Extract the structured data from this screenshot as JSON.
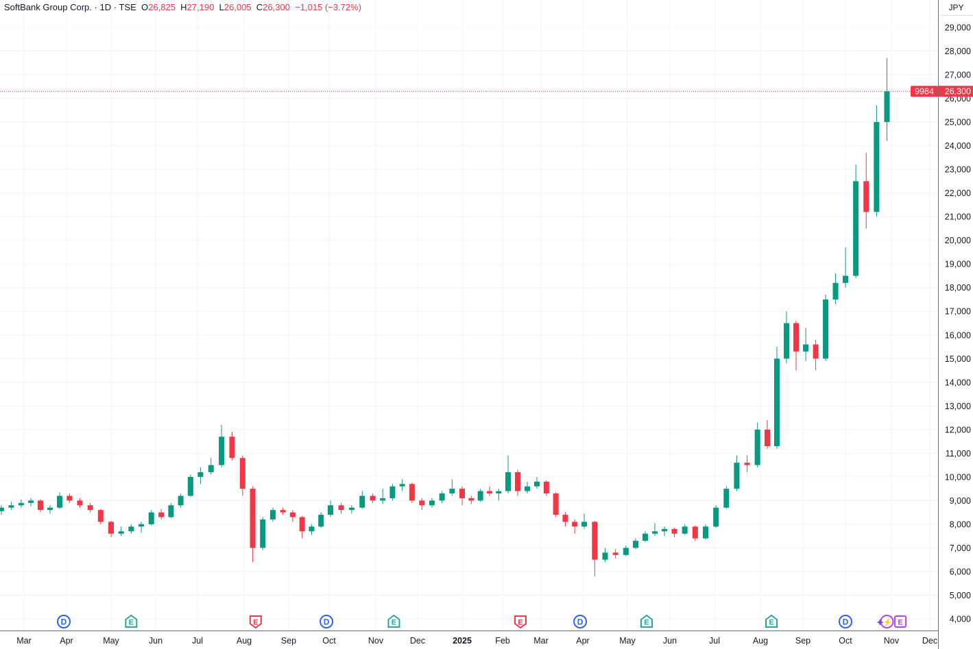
{
  "header": {
    "symbol": "SoftBank Group Corp.",
    "sep1": "·",
    "interval": "1D",
    "sep2": "·",
    "exchange": "TSE",
    "open_label": "O",
    "open": "26,825",
    "high_label": "H",
    "high": "27,190",
    "low_label": "L",
    "low": "26,005",
    "close_label": "C",
    "close": "26,300",
    "change": "−1,015 (−3.72%)"
  },
  "price_scale": {
    "currency": "JPY"
  },
  "last_price": {
    "ticker": "9984",
    "value": "26,300",
    "color": "#f23645"
  },
  "colors": {
    "up": "#089981",
    "down": "#f23645",
    "grid": "#f0f3fa",
    "dividend": "#2962ff",
    "earnings_past": "#22ab94",
    "earnings_neg": "#f23645",
    "upcoming": "#b245e6"
  },
  "chart_data": {
    "type": "candlestick",
    "title": "",
    "ylim": [
      3500,
      29800
    ],
    "grid": true,
    "y_ticks": [
      "4,000",
      "5,000",
      "6,000",
      "7,000",
      "8,000",
      "9,000",
      "10,000",
      "11,000",
      "12,000",
      "13,000",
      "14,000",
      "15,000",
      "16,000",
      "17,000",
      "18,000",
      "19,000",
      "20,000",
      "21,000",
      "22,000",
      "23,000",
      "24,000",
      "25,000",
      "26,000",
      "27,000",
      "28,000",
      "29,000"
    ],
    "x_ticks": [
      {
        "month": "2024-03",
        "label": "Mar"
      },
      {
        "month": "2024-04",
        "label": "Apr"
      },
      {
        "month": "2024-05",
        "label": "May"
      },
      {
        "month": "2024-06",
        "label": "Jun"
      },
      {
        "month": "2024-07",
        "label": "Jul"
      },
      {
        "month": "2024-08",
        "label": "Aug"
      },
      {
        "month": "2024-09",
        "label": "Sep"
      },
      {
        "month": "2024-10",
        "label": "Oct"
      },
      {
        "month": "2024-11",
        "label": "Nov"
      },
      {
        "month": "2024-12",
        "label": "Dec"
      },
      {
        "month": "2025-01",
        "label": "2025",
        "year": true
      },
      {
        "month": "2025-02",
        "label": "Feb"
      },
      {
        "month": "2025-03",
        "label": "Mar"
      },
      {
        "month": "2025-04",
        "label": "Apr"
      },
      {
        "month": "2025-05",
        "label": "May"
      },
      {
        "month": "2025-06",
        "label": "Jun"
      },
      {
        "month": "2025-07",
        "label": "Jul"
      },
      {
        "month": "2025-08",
        "label": "Aug"
      },
      {
        "month": "2025-09",
        "label": "Sep"
      },
      {
        "month": "2025-10",
        "label": "Oct"
      },
      {
        "month": "2025-11",
        "label": "Nov"
      },
      {
        "month": "2025-12",
        "label": "Dec"
      }
    ],
    "candle_fields": [
      "date",
      "open",
      "high",
      "low",
      "close"
    ],
    "candles": [
      [
        "2024-02-12",
        8550,
        8800,
        8400,
        8700
      ],
      [
        "2024-02-19",
        8700,
        8950,
        8600,
        8800
      ],
      [
        "2024-02-26",
        8800,
        9050,
        8700,
        8900
      ],
      [
        "2024-03-04",
        8900,
        9100,
        8750,
        9000
      ],
      [
        "2024-03-11",
        9000,
        9050,
        8500,
        8600
      ],
      [
        "2024-03-18",
        8600,
        8800,
        8450,
        8700
      ],
      [
        "2024-03-25",
        8700,
        9350,
        8650,
        9200
      ],
      [
        "2024-04-01",
        9200,
        9300,
        8900,
        9000
      ],
      [
        "2024-04-08",
        9000,
        9100,
        8700,
        8800
      ],
      [
        "2024-04-15",
        8800,
        8900,
        8500,
        8600
      ],
      [
        "2024-04-22",
        8600,
        8650,
        8000,
        8100
      ],
      [
        "2024-04-29",
        8100,
        8150,
        7450,
        7600
      ],
      [
        "2024-05-06",
        7600,
        7900,
        7500,
        7700
      ],
      [
        "2024-05-13",
        7700,
        8000,
        7600,
        7900
      ],
      [
        "2024-05-20",
        7900,
        8100,
        7650,
        8000
      ],
      [
        "2024-05-27",
        8000,
        8600,
        7950,
        8500
      ],
      [
        "2024-06-03",
        8500,
        8650,
        8200,
        8300
      ],
      [
        "2024-06-10",
        8300,
        8900,
        8250,
        8800
      ],
      [
        "2024-06-17",
        8800,
        9300,
        8700,
        9200
      ],
      [
        "2024-06-24",
        9200,
        10100,
        9150,
        10000
      ],
      [
        "2024-07-01",
        10000,
        10400,
        9700,
        10200
      ],
      [
        "2024-07-08",
        10200,
        10800,
        10100,
        10500
      ],
      [
        "2024-07-15",
        10500,
        12200,
        10400,
        11700
      ],
      [
        "2024-07-22",
        11700,
        11900,
        10700,
        10800
      ],
      [
        "2024-07-29",
        10800,
        10900,
        9200,
        9500
      ],
      [
        "2024-08-05",
        9500,
        9600,
        6400,
        7000
      ],
      [
        "2024-08-12",
        7000,
        8300,
        6900,
        8200
      ],
      [
        "2024-08-19",
        8200,
        8700,
        8100,
        8600
      ],
      [
        "2024-08-26",
        8600,
        8700,
        8400,
        8500
      ],
      [
        "2024-09-02",
        8500,
        8600,
        8100,
        8300
      ],
      [
        "2024-09-09",
        8300,
        8350,
        7400,
        7700
      ],
      [
        "2024-09-16",
        7700,
        8000,
        7550,
        7900
      ],
      [
        "2024-09-23",
        7900,
        8500,
        7850,
        8400
      ],
      [
        "2024-09-30",
        8400,
        9000,
        8300,
        8800
      ],
      [
        "2024-10-07",
        8800,
        8900,
        8450,
        8600
      ],
      [
        "2024-10-14",
        8600,
        8800,
        8450,
        8700
      ],
      [
        "2024-10-21",
        8700,
        9400,
        8650,
        9200
      ],
      [
        "2024-10-28",
        9200,
        9300,
        8900,
        9000
      ],
      [
        "2024-11-04",
        9000,
        9500,
        8850,
        9100
      ],
      [
        "2024-11-11",
        9100,
        9700,
        9000,
        9600
      ],
      [
        "2024-11-18",
        9600,
        9900,
        9400,
        9700
      ],
      [
        "2024-11-25",
        9700,
        9750,
        8900,
        9000
      ],
      [
        "2024-12-02",
        9000,
        9100,
        8600,
        8800
      ],
      [
        "2024-12-09",
        8800,
        9100,
        8700,
        9000
      ],
      [
        "2024-12-16",
        9000,
        9400,
        8900,
        9300
      ],
      [
        "2024-12-23",
        9300,
        9900,
        9200,
        9500
      ],
      [
        "2024-12-30",
        9500,
        9600,
        8800,
        9100
      ],
      [
        "2025-01-06",
        9100,
        9200,
        8850,
        9000
      ],
      [
        "2025-01-13",
        9000,
        9500,
        8950,
        9400
      ],
      [
        "2025-01-20",
        9400,
        9600,
        9200,
        9300
      ],
      [
        "2025-01-27",
        9300,
        9500,
        9000,
        9400
      ],
      [
        "2025-02-03",
        9400,
        10900,
        9300,
        10200
      ],
      [
        "2025-02-10",
        10200,
        10300,
        9200,
        9400
      ],
      [
        "2025-02-17",
        9400,
        9800,
        9300,
        9600
      ],
      [
        "2025-02-24",
        9600,
        10000,
        9500,
        9800
      ],
      [
        "2025-03-03",
        9800,
        9850,
        9200,
        9300
      ],
      [
        "2025-03-10",
        9300,
        9350,
        8300,
        8400
      ],
      [
        "2025-03-17",
        8400,
        8500,
        7900,
        8100
      ],
      [
        "2025-03-24",
        8100,
        8200,
        7600,
        7900
      ],
      [
        "2025-03-31",
        7900,
        8450,
        7800,
        8100
      ],
      [
        "2025-04-07",
        8100,
        8150,
        5800,
        6500
      ],
      [
        "2025-04-14",
        6500,
        7000,
        6400,
        6800
      ],
      [
        "2025-04-21",
        6800,
        6950,
        6550,
        6700
      ],
      [
        "2025-04-28",
        6700,
        7100,
        6650,
        7000
      ],
      [
        "2025-05-05",
        7000,
        7400,
        6950,
        7300
      ],
      [
        "2025-05-12",
        7300,
        7700,
        7250,
        7600
      ],
      [
        "2025-05-19",
        7600,
        8050,
        7500,
        7700
      ],
      [
        "2025-05-26",
        7700,
        7900,
        7500,
        7800
      ],
      [
        "2025-06-02",
        7800,
        7850,
        7450,
        7600
      ],
      [
        "2025-06-09",
        7600,
        8000,
        7550,
        7900
      ],
      [
        "2025-06-16",
        7900,
        7950,
        7300,
        7400
      ],
      [
        "2025-06-23",
        7400,
        8000,
        7350,
        7900
      ],
      [
        "2025-06-30",
        7900,
        8800,
        7850,
        8700
      ],
      [
        "2025-07-07",
        8700,
        9600,
        8650,
        9500
      ],
      [
        "2025-07-14",
        9500,
        10900,
        9400,
        10600
      ],
      [
        "2025-07-21",
        10600,
        10900,
        10200,
        10500
      ],
      [
        "2025-07-28",
        10500,
        12300,
        10400,
        12000
      ],
      [
        "2025-08-04",
        12000,
        12400,
        11200,
        11300
      ],
      [
        "2025-08-11",
        11300,
        15500,
        11200,
        15000
      ],
      [
        "2025-08-18",
        15000,
        17000,
        14800,
        16500
      ],
      [
        "2025-08-25",
        16500,
        16600,
        14500,
        15300
      ],
      [
        "2025-09-01",
        15300,
        16300,
        14900,
        15600
      ],
      [
        "2025-09-08",
        15600,
        15800,
        14500,
        15000
      ],
      [
        "2025-09-15",
        15000,
        17700,
        14900,
        17500
      ],
      [
        "2025-09-22",
        17500,
        18600,
        17300,
        18200
      ],
      [
        "2025-09-29",
        18200,
        19700,
        18000,
        18500
      ],
      [
        "2025-10-06",
        18500,
        23200,
        18400,
        22500
      ],
      [
        "2025-10-13",
        22500,
        23700,
        20500,
        21200
      ],
      [
        "2025-10-20",
        21200,
        25700,
        21000,
        25000
      ],
      [
        "2025-10-27",
        25000,
        27700,
        24200,
        26300
      ]
    ],
    "events": [
      {
        "type": "dividend",
        "letter": "D",
        "date": "2024-03-28"
      },
      {
        "type": "earnings",
        "letter": "E",
        "date": "2024-05-13",
        "tone": "positive"
      },
      {
        "type": "earnings",
        "letter": "E",
        "date": "2024-08-07",
        "tone": "negative"
      },
      {
        "type": "dividend",
        "letter": "D",
        "date": "2024-09-27"
      },
      {
        "type": "earnings",
        "letter": "E",
        "date": "2024-11-12",
        "tone": "positive"
      },
      {
        "type": "earnings",
        "letter": "E",
        "date": "2025-02-12",
        "tone": "negative"
      },
      {
        "type": "dividend",
        "letter": "D",
        "date": "2025-03-28"
      },
      {
        "type": "earnings",
        "letter": "E",
        "date": "2025-05-13",
        "tone": "positive"
      },
      {
        "type": "dividend",
        "letter": "D",
        "date": "2025-09-29"
      },
      {
        "type": "earnings",
        "letter": "E",
        "date": "2025-08-07",
        "tone": "positive"
      },
      {
        "type": "ai-insight",
        "letter": "⚡",
        "date": "2025-10-27"
      },
      {
        "type": "earnings",
        "letter": "E",
        "date": "2025-11-06",
        "tone": "upcoming"
      }
    ]
  }
}
